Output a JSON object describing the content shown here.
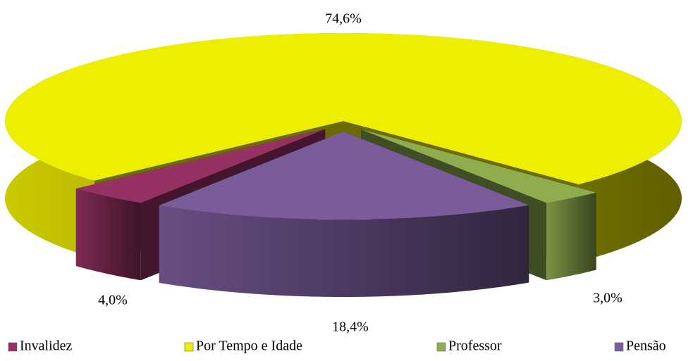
{
  "chart_data": {
    "type": "pie",
    "categories": [
      "Invalidez",
      "Por Tempo e Idade",
      "Professor",
      "Pensão"
    ],
    "values": [
      4.0,
      74.6,
      3.0,
      18.4
    ],
    "value_labels": [
      "4,0%",
      "74,6%",
      "3,0%",
      "18,4%"
    ],
    "colors": [
      "#953163",
      "#eeee00",
      "#8fad4f",
      "#7a5c9a"
    ],
    "legend": "bottom"
  }
}
